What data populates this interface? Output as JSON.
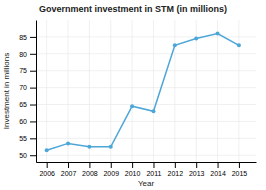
{
  "chart_data": {
    "type": "line",
    "title": "Government investment in STM (in millions)",
    "xlabel": "Year",
    "ylabel": "Investment in millions",
    "x": [
      2006,
      2007,
      2008,
      2009,
      2010,
      2011,
      2012,
      2013,
      2014,
      2015
    ],
    "values": [
      51.5,
      53.5,
      52.5,
      52.5,
      64.5,
      63.0,
      82.5,
      84.5,
      86.0,
      82.5
    ],
    "color": "#4da6d8",
    "marker": "circle",
    "xlim": [
      2005.5,
      2015.8
    ],
    "ylim": [
      48,
      90
    ],
    "xticks": [
      2006,
      2007,
      2008,
      2009,
      2010,
      2011,
      2012,
      2013,
      2014,
      2015
    ],
    "yticks": [
      50,
      55,
      60,
      65,
      70,
      75,
      80,
      85
    ],
    "grid": true
  }
}
